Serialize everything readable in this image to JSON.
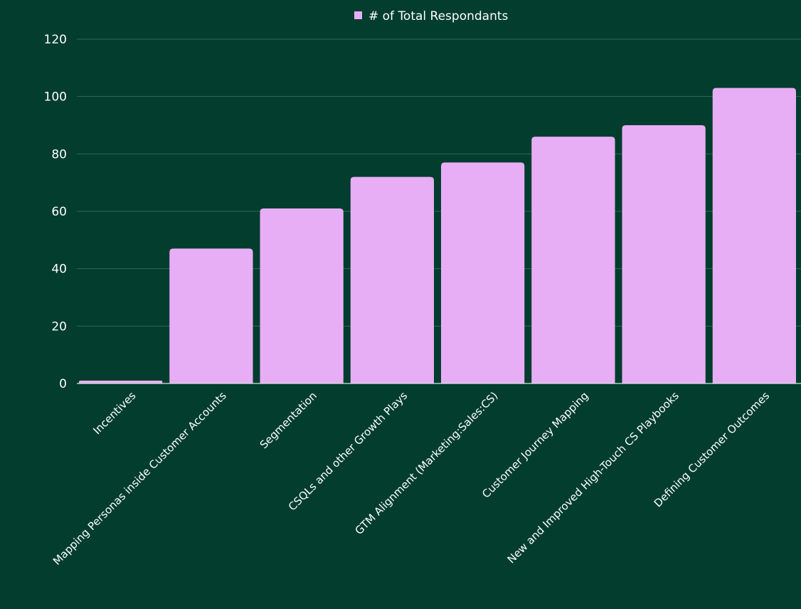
{
  "chart_data": {
    "type": "bar",
    "title": "",
    "xlabel": "",
    "ylabel": "",
    "ylim": [
      0,
      120
    ],
    "yticks": [
      0,
      20,
      40,
      60,
      80,
      100,
      120
    ],
    "grid": true,
    "legend_position": "top-center",
    "categories": [
      "Incentives",
      "Mapping Personas inside Customer Accounts",
      "Segmentation",
      "CSQLs and other Growth Plays",
      "GTM Alignment (Marketing:Sales:CS)",
      "Customer Journey Mapping",
      "New and Improved High-Touch CS Playbooks",
      "Defining Customer Outcomes"
    ],
    "series": [
      {
        "name": "# of Total Respondants",
        "values": [
          1,
          47,
          61,
          72,
          77,
          86,
          90,
          103
        ]
      }
    ]
  },
  "colors": {
    "background": "#023d2e",
    "bar": "#e8aef5",
    "text": "#ffffff",
    "grid": "#2f6a58"
  }
}
